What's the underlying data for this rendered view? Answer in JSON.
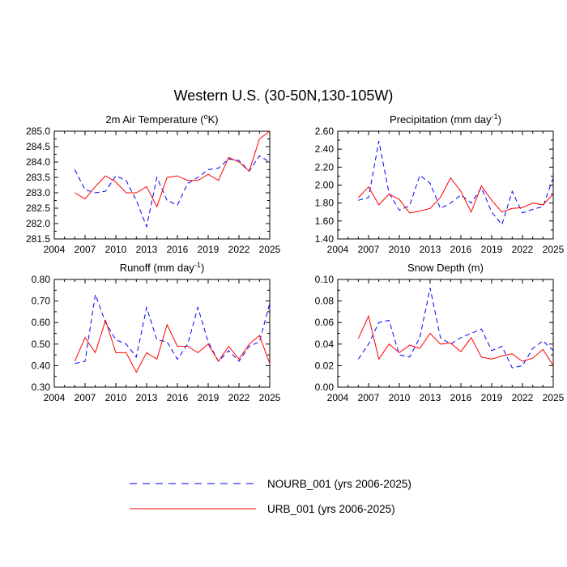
{
  "title": "Western U.S. (30-50N,130-105W)",
  "colors": {
    "nourb": "#0000ff",
    "urb": "#ff0000",
    "axis": "#000000"
  },
  "legend": {
    "nourb_label": "NOURB_001 (yrs 2006-2025)",
    "urb_label": "URB_001 (yrs 2006-2025)"
  },
  "chart_data": [
    {
      "type": "line",
      "title": "2m Air Temperature (",
      "title_sup": "o",
      "title_suffix": "K)",
      "xlim": [
        2004,
        2025
      ],
      "ylim": [
        281.5,
        285.0
      ],
      "xticks": [
        "2004",
        "2007",
        "2010",
        "2013",
        "2016",
        "2019",
        "2022",
        "2025"
      ],
      "yticks": [
        "281.5",
        "282.0",
        "282.5",
        "283.0",
        "283.5",
        "284.0",
        "284.5",
        "285.0"
      ],
      "x": [
        2006,
        2007,
        2008,
        2009,
        2010,
        2011,
        2012,
        2013,
        2014,
        2015,
        2016,
        2017,
        2018,
        2019,
        2020,
        2021,
        2022,
        2023,
        2024,
        2025
      ],
      "series": [
        {
          "name": "NOURB_001",
          "style": "dashed",
          "values": [
            283.75,
            283.1,
            283.0,
            283.05,
            283.55,
            283.4,
            282.75,
            281.9,
            283.5,
            282.75,
            282.6,
            283.3,
            283.5,
            283.75,
            283.8,
            284.1,
            284.05,
            283.7,
            284.2,
            284.0
          ]
        },
        {
          "name": "URB_001",
          "style": "solid",
          "values": [
            283.0,
            282.8,
            283.2,
            283.55,
            283.35,
            283.0,
            283.0,
            283.2,
            282.55,
            283.5,
            283.55,
            283.4,
            283.4,
            283.6,
            283.4,
            284.15,
            284.0,
            283.7,
            284.75,
            285.0
          ]
        }
      ]
    },
    {
      "type": "line",
      "title": "Precipitation (mm day",
      "title_sup": "-1",
      "title_suffix": ")",
      "xlim": [
        2004,
        2025
      ],
      "ylim": [
        1.4,
        2.6
      ],
      "xticks": [
        "2004",
        "2007",
        "2010",
        "2013",
        "2016",
        "2019",
        "2022",
        "2025"
      ],
      "yticks": [
        "1.40",
        "1.60",
        "1.80",
        "2.00",
        "2.20",
        "2.40",
        "2.60"
      ],
      "x": [
        2006,
        2007,
        2008,
        2009,
        2010,
        2011,
        2012,
        2013,
        2014,
        2015,
        2016,
        2017,
        2018,
        2019,
        2020,
        2021,
        2022,
        2023,
        2024,
        2025
      ],
      "series": [
        {
          "name": "NOURB_001",
          "style": "dashed",
          "values": [
            1.83,
            1.86,
            2.49,
            1.91,
            1.72,
            1.77,
            2.11,
            2.02,
            1.74,
            1.8,
            1.89,
            1.8,
            1.97,
            1.7,
            1.56,
            1.93,
            1.69,
            1.73,
            1.76,
            2.08
          ]
        },
        {
          "name": "URB_001",
          "style": "solid",
          "values": [
            1.86,
            1.98,
            1.78,
            1.9,
            1.84,
            1.69,
            1.71,
            1.74,
            1.86,
            2.08,
            1.93,
            1.7,
            1.99,
            1.83,
            1.7,
            1.74,
            1.75,
            1.8,
            1.78,
            1.9
          ]
        }
      ]
    },
    {
      "type": "line",
      "title": "Runoff (mm day",
      "title_sup": "-1",
      "title_suffix": ")",
      "xlim": [
        2004,
        2025
      ],
      "ylim": [
        0.3,
        0.8
      ],
      "xticks": [
        "2004",
        "2007",
        "2010",
        "2013",
        "2016",
        "2019",
        "2022",
        "2025"
      ],
      "yticks": [
        "0.30",
        "0.40",
        "0.50",
        "0.60",
        "0.70",
        "0.80"
      ],
      "x": [
        2006,
        2007,
        2008,
        2009,
        2010,
        2011,
        2012,
        2013,
        2014,
        2015,
        2016,
        2017,
        2018,
        2019,
        2020,
        2021,
        2022,
        2023,
        2024,
        2025
      ],
      "series": [
        {
          "name": "NOURB_001",
          "style": "dashed",
          "values": [
            0.41,
            0.42,
            0.73,
            0.6,
            0.52,
            0.5,
            0.44,
            0.67,
            0.52,
            0.51,
            0.43,
            0.5,
            0.67,
            0.51,
            0.42,
            0.47,
            0.42,
            0.49,
            0.51,
            0.69
          ]
        },
        {
          "name": "URB_001",
          "style": "solid",
          "values": [
            0.42,
            0.53,
            0.46,
            0.61,
            0.46,
            0.46,
            0.37,
            0.46,
            0.43,
            0.59,
            0.49,
            0.49,
            0.46,
            0.5,
            0.42,
            0.49,
            0.43,
            0.5,
            0.54,
            0.41
          ]
        }
      ]
    },
    {
      "type": "line",
      "title": "Snow Depth (m)",
      "title_sup": "",
      "title_suffix": "",
      "xlim": [
        2004,
        2025
      ],
      "ylim": [
        0.0,
        0.1
      ],
      "xticks": [
        "2004",
        "2007",
        "2010",
        "2013",
        "2016",
        "2019",
        "2022",
        "2025"
      ],
      "yticks": [
        "0.00",
        "0.02",
        "0.04",
        "0.06",
        "0.08",
        "0.10"
      ],
      "x": [
        2006,
        2007,
        2008,
        2009,
        2010,
        2011,
        2012,
        2013,
        2014,
        2015,
        2016,
        2017,
        2018,
        2019,
        2020,
        2021,
        2022,
        2023,
        2024,
        2025
      ],
      "series": [
        {
          "name": "NOURB_001",
          "style": "dashed",
          "values": [
            0.026,
            0.04,
            0.06,
            0.062,
            0.03,
            0.028,
            0.046,
            0.092,
            0.046,
            0.04,
            0.046,
            0.05,
            0.054,
            0.034,
            0.038,
            0.018,
            0.02,
            0.036,
            0.043,
            0.034
          ]
        },
        {
          "name": "URB_001",
          "style": "solid",
          "values": [
            0.045,
            0.066,
            0.026,
            0.04,
            0.032,
            0.039,
            0.036,
            0.05,
            0.04,
            0.041,
            0.033,
            0.046,
            0.028,
            0.026,
            0.029,
            0.031,
            0.024,
            0.027,
            0.035,
            0.02
          ]
        }
      ]
    }
  ]
}
